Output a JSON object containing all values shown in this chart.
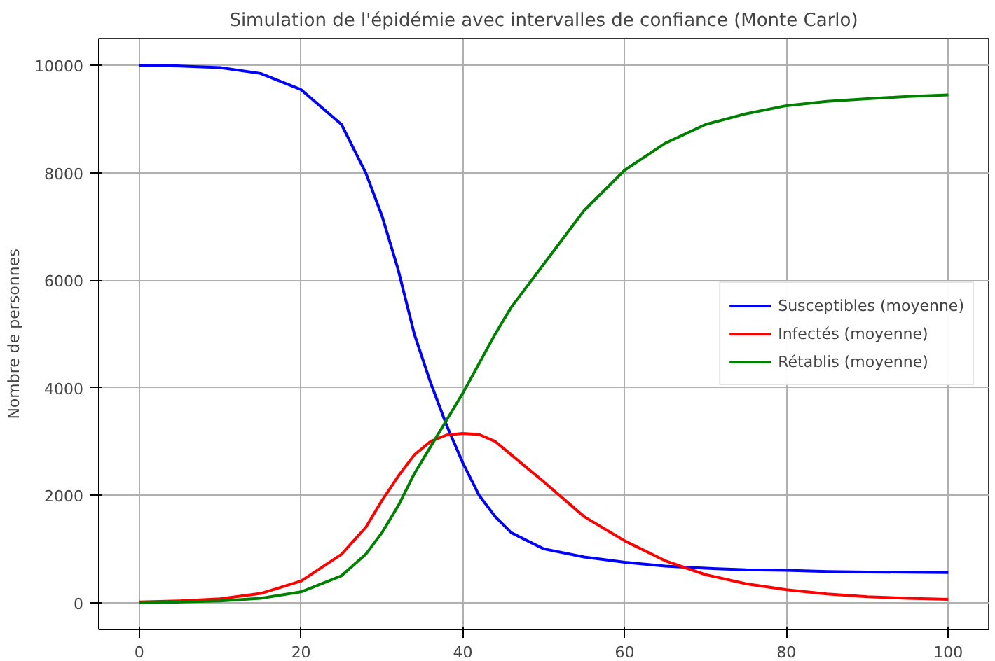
{
  "chart_data": {
    "type": "line",
    "title": "Simulation de l'épidémie avec intervalles de confiance (Monte Carlo)",
    "ylabel": "Nombre de personnes",
    "x": [
      0,
      5,
      10,
      15,
      20,
      25,
      28,
      30,
      32,
      34,
      36,
      38,
      40,
      42,
      44,
      46,
      50,
      55,
      60,
      65,
      70,
      75,
      80,
      85,
      90,
      95,
      100
    ],
    "series": [
      {
        "name": "Susceptibles (moyenne)",
        "color": "#0000ff",
        "values": [
          10000,
          9990,
          9960,
          9850,
          9550,
          8900,
          8000,
          7200,
          6200,
          5000,
          4100,
          3300,
          2600,
          2000,
          1600,
          1300,
          1000,
          850,
          750,
          680,
          640,
          610,
          600,
          580,
          570,
          565,
          560
        ]
      },
      {
        "name": "Infectés (moyenne)",
        "color": "#ff0000",
        "values": [
          10,
          30,
          70,
          170,
          400,
          900,
          1400,
          1900,
          2350,
          2750,
          3000,
          3120,
          3150,
          3130,
          3000,
          2750,
          2250,
          1600,
          1150,
          780,
          520,
          350,
          240,
          160,
          110,
          80,
          60
        ]
      },
      {
        "name": "Rétablis (moyenne)",
        "color": "#008000",
        "values": [
          0,
          10,
          30,
          80,
          200,
          500,
          900,
          1300,
          1800,
          2400,
          2900,
          3400,
          3900,
          4450,
          5000,
          5500,
          6300,
          7300,
          8050,
          8550,
          8900,
          9100,
          9250,
          9330,
          9380,
          9420,
          9450
        ]
      }
    ],
    "xlim": [
      -5,
      105
    ],
    "ylim": [
      -500,
      10500
    ],
    "xticks": [
      0,
      20,
      40,
      60,
      80,
      100
    ],
    "yticks": [
      0,
      2000,
      4000,
      6000,
      8000,
      10000
    ],
    "grid": true,
    "legend": "center right",
    "line_style": "solid",
    "marker": "none"
  }
}
